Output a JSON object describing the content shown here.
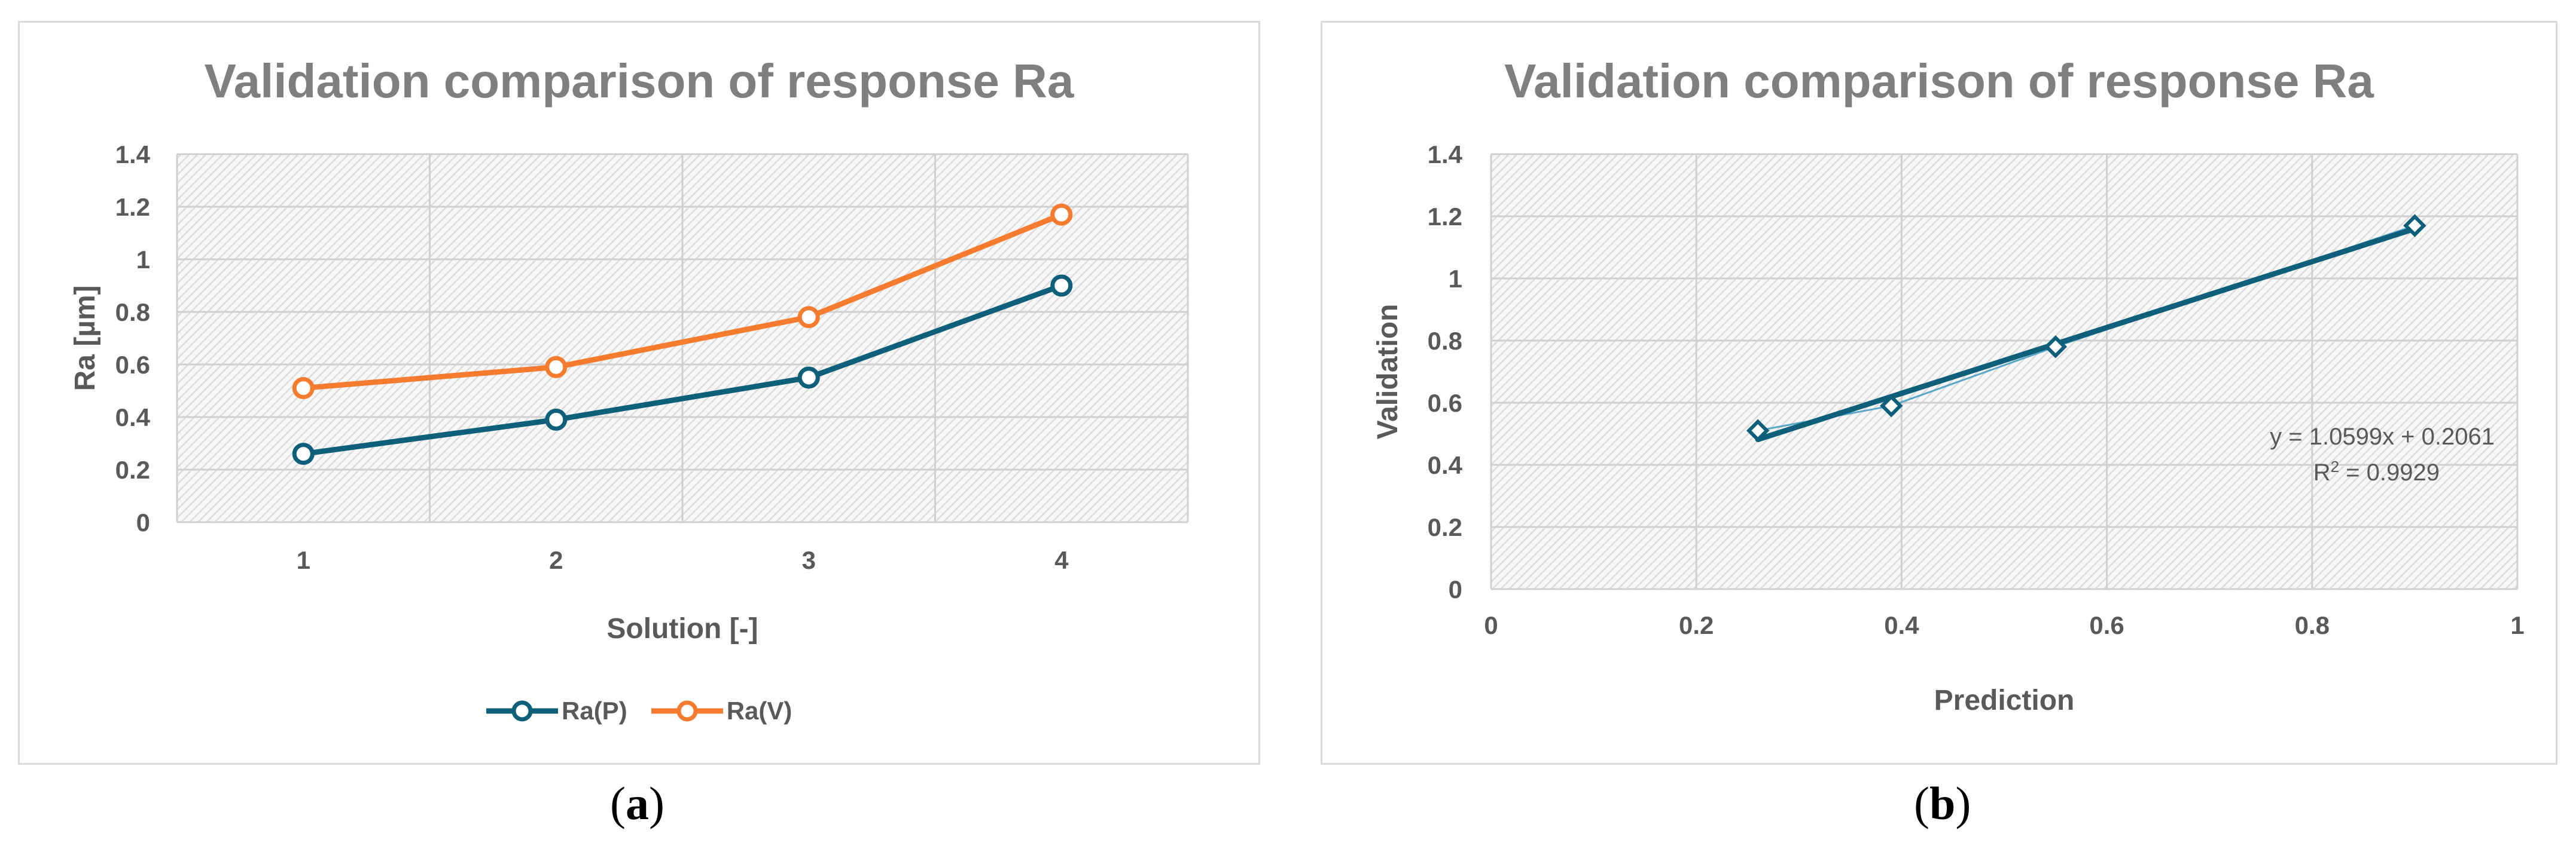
{
  "panels": [
    {
      "caption_letter": "a",
      "chart_data": {
        "type": "line",
        "title": "Validation comparison of response Ra",
        "xlabel": "Solution [-]",
        "ylabel": "Ra [µm]",
        "categories": [
          "1",
          "2",
          "3",
          "4"
        ],
        "ylim": [
          0,
          1.4
        ],
        "yticks": [
          "0",
          "0.2",
          "0.4",
          "0.6",
          "0.8",
          "1",
          "1.2",
          "1.4"
        ],
        "grid": true,
        "legend": "bottom",
        "series": [
          {
            "name": "Ra(P)",
            "color": "#0e5f7a",
            "values": [
              0.26,
              0.39,
              0.55,
              0.9
            ]
          },
          {
            "name": "Ra(V)",
            "color": "#f57c2e",
            "values": [
              0.51,
              0.59,
              0.78,
              1.17
            ]
          }
        ]
      }
    },
    {
      "caption_letter": "b",
      "chart_data": {
        "type": "scatter",
        "title": "Validation comparison of response Ra",
        "xlabel": "Prediction",
        "ylabel": "Validation",
        "xlim": [
          0,
          1
        ],
        "ylim": [
          0,
          1.4
        ],
        "xticks": [
          "0",
          "0.2",
          "0.4",
          "0.6",
          "0.8",
          "1"
        ],
        "yticks": [
          "0",
          "0.2",
          "0.4",
          "0.6",
          "0.8",
          "1",
          "1.2",
          "1.4"
        ],
        "grid": true,
        "series": [
          {
            "name": "Validation",
            "color": "#0e5f7a",
            "x": [
              0.26,
              0.39,
              0.55,
              0.9
            ],
            "y": [
              0.51,
              0.59,
              0.78,
              1.17
            ]
          }
        ],
        "trendline": {
          "slope": 1.0599,
          "intercept": 0.2061,
          "color": "#0e5f7a"
        },
        "annotation": {
          "equation": "y = 1.0599x + 0.2061",
          "r2_prefix": "R",
          "r2_exp": "2",
          "r2_value": " = 0.9929"
        }
      }
    }
  ]
}
